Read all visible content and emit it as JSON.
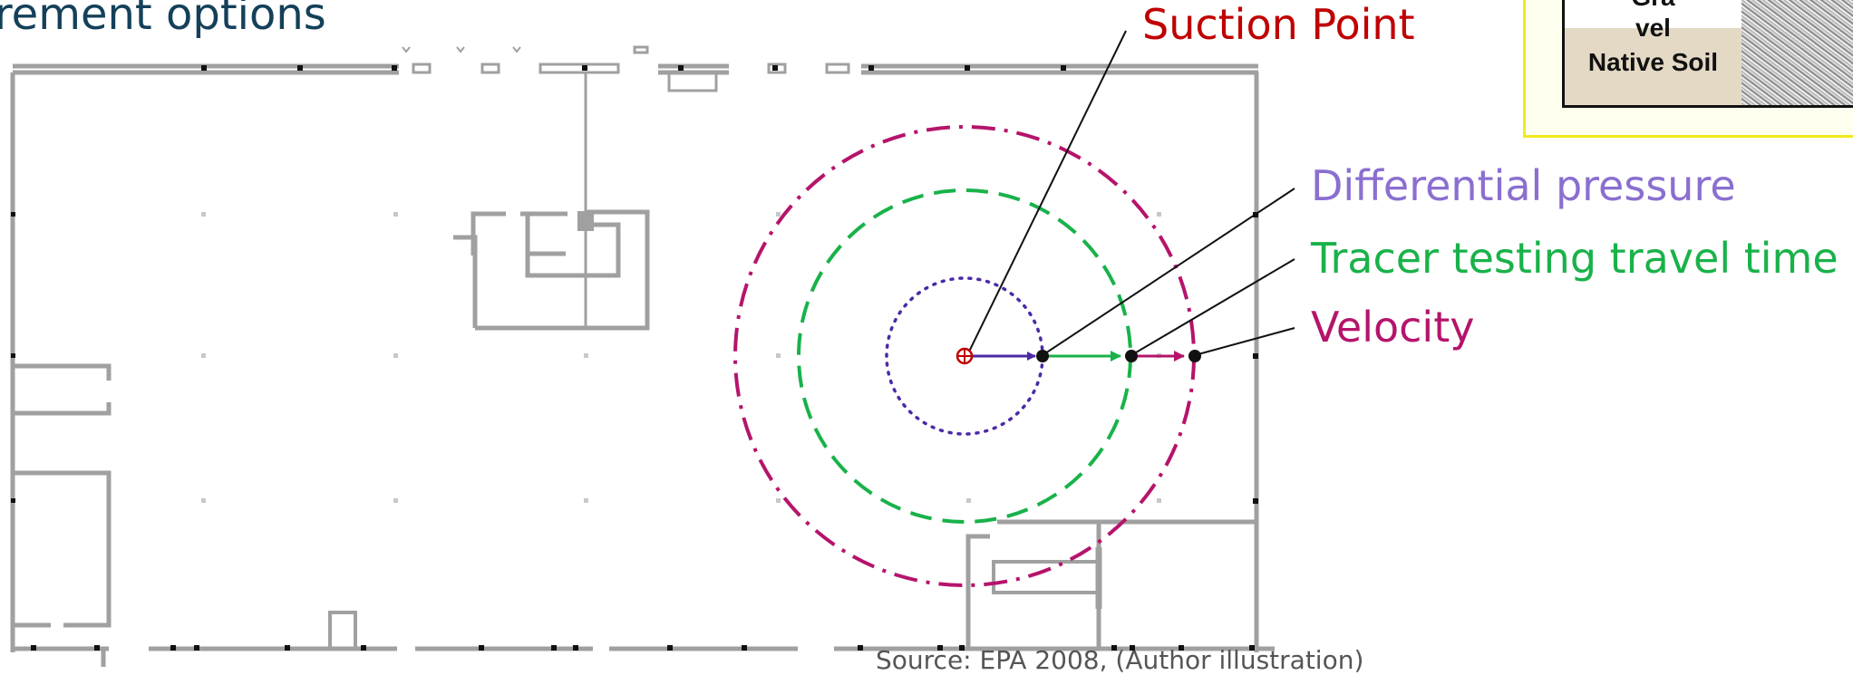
{
  "heading": "rement options",
  "labels": {
    "suction_point": "Suction Point",
    "differential_pressure": "Differential pressure",
    "tracer_testing": "Tracer testing travel time",
    "velocity": "Velocity"
  },
  "inset": {
    "gravel_top": "Gra",
    "gravel_bottom": "vel",
    "native_soil": "Native Soil"
  },
  "footer": "Source: EPA 2008, (Author illustration)",
  "colors": {
    "heading": "#14405a",
    "suction": "#c00000",
    "differential": "#8a6fd0",
    "tracer": "#19b24a",
    "velocity": "#b5146b",
    "walls": "#a0a0a0",
    "inset_border": "#f2ea1c"
  }
}
